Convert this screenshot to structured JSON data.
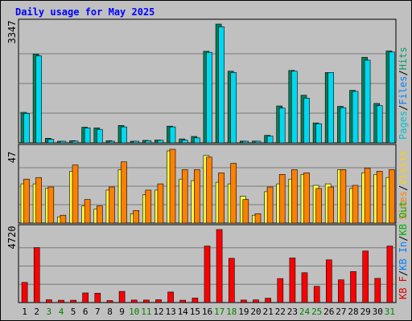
{
  "chart_data": {
    "title": "Daily usage for May 2025",
    "type": "bar",
    "x": [
      "1",
      "2",
      "3",
      "4",
      "5",
      "6",
      "7",
      "8",
      "9",
      "10",
      "11",
      "12",
      "13",
      "14",
      "15",
      "16",
      "17",
      "18",
      "19",
      "20",
      "21",
      "22",
      "23",
      "24",
      "25",
      "26",
      "27",
      "28",
      "29",
      "30",
      "31"
    ],
    "weekend_days": [
      "3",
      "4",
      "10",
      "11",
      "17",
      "18",
      "24",
      "25",
      "31"
    ],
    "panels": [
      {
        "id": "pages-files-hits",
        "ymax_label": "3347",
        "ymax": 3347,
        "legend": [
          "Pages",
          "/",
          "Files",
          "/",
          "Hits"
        ],
        "legend_colors": [
          "#00c0d0",
          "#000000",
          "#0080ff",
          "#000000",
          "#00a070"
        ],
        "series": [
          {
            "name": "Hits",
            "color": "#00805a",
            "values": [
              860,
              2500,
              130,
              20,
              60,
              440,
              420,
              60,
              490,
              20,
              70,
              80,
              470,
              110,
              180,
              2580,
              3347,
              2020,
              50,
              50,
              210,
              1040,
              2040,
              1340,
              560,
              1980,
              1030,
              1480,
              2410,
              1110,
              2590
            ]
          },
          {
            "name": "Files",
            "color": "#00d8f0",
            "values": [
              830,
              2450,
              100,
              15,
              50,
              420,
              380,
              40,
              450,
              10,
              60,
              70,
              450,
              80,
              140,
              2550,
              3270,
              1980,
              40,
              40,
              190,
              980,
              2020,
              1260,
              540,
              1980,
              990,
              1450,
              2330,
              1050,
              2560
            ]
          }
        ]
      },
      {
        "id": "visits-sites",
        "ymax_label": "47",
        "ymax": 47,
        "legend": [
          "Sites",
          "/",
          "Visits"
        ],
        "legend_colors": [
          "#ff8000",
          "#000000",
          "#ffd000"
        ],
        "series": [
          {
            "name": "Visits",
            "color": "#ffff40",
            "values": [
              25,
              25,
              22,
              4,
              33,
              11,
              9,
              21,
              34,
              6,
              18,
              21,
              46,
              28,
              27,
              43,
              26,
              25,
              17,
              5,
              20,
              25,
              28,
              31,
              24,
              25,
              34,
              22,
              32,
              31,
              29
            ]
          },
          {
            "name": "Sites",
            "color": "#ff8000",
            "values": [
              28,
              29,
              23,
              5,
              37,
              15,
              11,
              23,
              39,
              8,
              21,
              25,
              47,
              34,
              34,
              42,
              32,
              38,
              15,
              6,
              23,
              31,
              34,
              32,
              22,
              23,
              34,
              24,
              35,
              33,
              34
            ]
          }
        ]
      },
      {
        "id": "kbytes",
        "ymax_label": "4720",
        "ymax": 4720,
        "legend": [
          "KB F",
          "/",
          "KB In",
          "/",
          "KB Out"
        ],
        "legend_colors": [
          "#e00000",
          "#000000",
          "#0080ff",
          "#000000",
          "#00b000"
        ],
        "series": [
          {
            "name": "KB F",
            "color": "#ff0000",
            "values": [
              1300,
              3550,
              180,
              150,
              150,
              620,
              600,
              130,
              720,
              160,
              160,
              180,
              680,
              150,
              290,
              3650,
              4720,
              2860,
              160,
              170,
              280,
              1550,
              2880,
              1930,
              1050,
              2760,
              1470,
              2000,
              3330,
              1560,
              3650
            ]
          }
        ]
      }
    ]
  }
}
